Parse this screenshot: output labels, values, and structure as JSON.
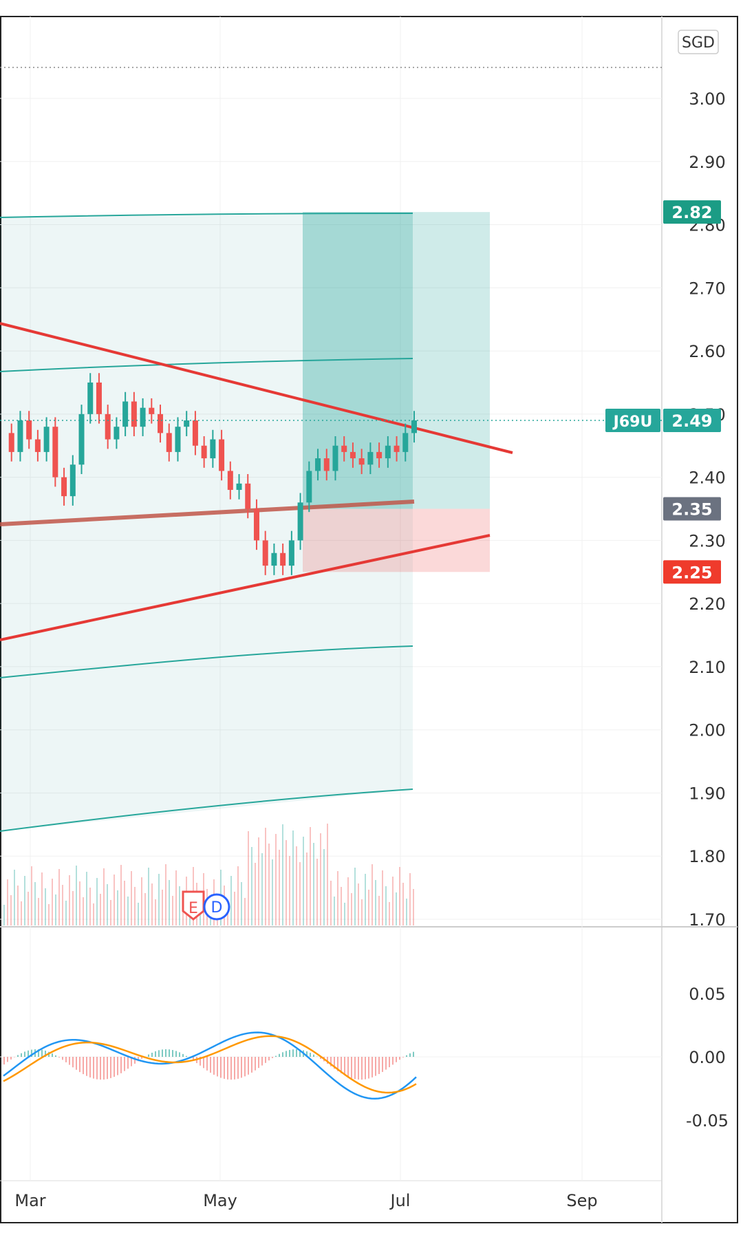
{
  "chart_data": [
    {
      "type": "candlestick",
      "title": "",
      "currency": "SGD",
      "symbol": "J69U",
      "last_price": 2.49,
      "price_labels": {
        "take_profit": "2.82",
        "last": "2.49",
        "entry": "2.35",
        "stop_loss": "2.25"
      },
      "y_ticks": [
        "3.00",
        "2.90",
        "2.80",
        "2.70",
        "2.60",
        "2.50",
        "2.40",
        "2.30",
        "2.20",
        "2.10",
        "2.00",
        "1.90",
        "1.80",
        "1.70"
      ],
      "x_ticks": [
        "Mar",
        "May",
        "Jul",
        "Sep"
      ],
      "ylim": [
        1.7,
        3.06
      ],
      "grid": true,
      "approx_close_path": [
        [
          0,
          2.47
        ],
        [
          0.05,
          2.44
        ],
        [
          0.1,
          2.49
        ],
        [
          0.15,
          2.46
        ],
        [
          0.2,
          2.44
        ],
        [
          0.25,
          2.48
        ],
        [
          0.3,
          2.4
        ],
        [
          0.35,
          2.37
        ],
        [
          0.4,
          2.42
        ],
        [
          0.45,
          2.5
        ],
        [
          0.5,
          2.55
        ],
        [
          0.55,
          2.5
        ],
        [
          0.6,
          2.46
        ],
        [
          0.65,
          2.48
        ],
        [
          0.7,
          2.52
        ],
        [
          0.75,
          2.48
        ],
        [
          0.8,
          2.51
        ],
        [
          0.85,
          2.5
        ],
        [
          0.9,
          2.47
        ],
        [
          0.95,
          2.44
        ],
        [
          1.0,
          2.48
        ],
        [
          1.05,
          2.49
        ],
        [
          1.1,
          2.45
        ],
        [
          1.15,
          2.43
        ],
        [
          1.2,
          2.46
        ],
        [
          1.25,
          2.41
        ],
        [
          1.3,
          2.38
        ],
        [
          1.35,
          2.39
        ],
        [
          1.4,
          2.35
        ],
        [
          1.45,
          2.3
        ],
        [
          1.5,
          2.26
        ],
        [
          1.55,
          2.28
        ],
        [
          1.6,
          2.26
        ],
        [
          1.65,
          2.3
        ],
        [
          1.7,
          2.36
        ],
        [
          1.75,
          2.41
        ],
        [
          1.8,
          2.43
        ],
        [
          1.85,
          2.41
        ],
        [
          1.9,
          2.45
        ],
        [
          1.95,
          2.44
        ],
        [
          2.0,
          2.43
        ],
        [
          2.05,
          2.42
        ],
        [
          2.1,
          2.44
        ],
        [
          2.15,
          2.43
        ],
        [
          2.2,
          2.45
        ],
        [
          2.25,
          2.44
        ],
        [
          2.3,
          2.47
        ],
        [
          2.35,
          2.49
        ]
      ],
      "macd_ticks": [
        "0.05",
        "0.00",
        "-0.05"
      ],
      "event_markers": [
        "E",
        "D"
      ]
    }
  ]
}
